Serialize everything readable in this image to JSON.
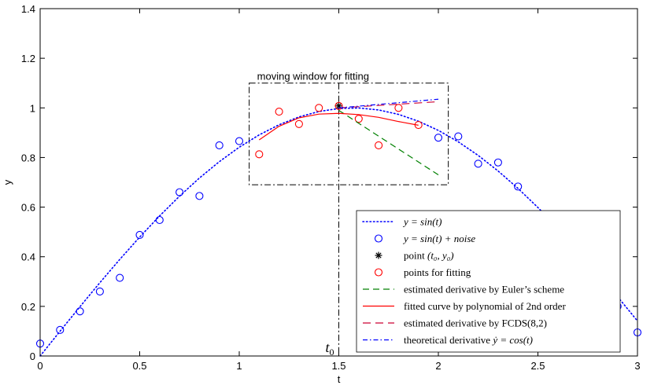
{
  "chart_data": {
    "type": "line",
    "xlabel": "t",
    "ylabel": "y",
    "xlim": [
      0,
      3
    ],
    "ylim": [
      0,
      1.4
    ],
    "xticks": [
      0,
      0.5,
      1,
      1.5,
      2,
      2.5,
      3
    ],
    "xtick_labels": [
      "0",
      "0.5",
      "1",
      "1.5",
      "2",
      "2.5",
      "3"
    ],
    "yticks": [
      0,
      0.2,
      0.4,
      0.6,
      0.8,
      1,
      1.2,
      1.4
    ],
    "ytick_labels": [
      "0",
      "0.2",
      "0.4",
      "0.6",
      "0.8",
      "1",
      "1.2",
      "1.4"
    ],
    "grid": false,
    "legend_position": "bottom-right",
    "annotations": {
      "window_label": "moving window for fitting",
      "window": {
        "t": [
          1.05,
          2.05
        ],
        "y": [
          0.69,
          1.1
        ]
      },
      "t0_label": "t",
      "t0_sub": "0",
      "t0_value": 1.5
    },
    "series": [
      {
        "name": "y = sin(t)",
        "style": "dotted",
        "color": "#0000ff",
        "x": [
          0,
          0.1,
          0.2,
          0.3,
          0.4,
          0.5,
          0.6,
          0.7,
          0.8,
          0.9,
          1.0,
          1.1,
          1.2,
          1.3,
          1.4,
          1.5,
          1.6,
          1.7,
          1.8,
          1.9,
          2.0,
          2.1,
          2.2,
          2.3,
          2.4,
          2.5,
          2.6,
          2.7,
          2.8,
          2.9,
          3.0
        ],
        "y": [
          0,
          0.0998,
          0.1987,
          0.2955,
          0.3894,
          0.4794,
          0.5646,
          0.6442,
          0.7174,
          0.7833,
          0.8415,
          0.8912,
          0.932,
          0.9636,
          0.9854,
          0.9975,
          0.9996,
          0.9917,
          0.9738,
          0.9463,
          0.9093,
          0.8632,
          0.8085,
          0.7457,
          0.6755,
          0.5985,
          0.5155,
          0.4274,
          0.335,
          0.2392,
          0.1411
        ]
      },
      {
        "name": "y = sin(t) + noise",
        "style": "circle-marker",
        "color": "#0000ff",
        "x": [
          0,
          0.1,
          0.2,
          0.3,
          0.4,
          0.5,
          0.6,
          0.7,
          0.8,
          0.9,
          1.0,
          2.0,
          2.1,
          2.2,
          2.3,
          2.4,
          2.9,
          3.0
        ],
        "y": [
          0.05,
          0.105,
          0.18,
          0.26,
          0.315,
          0.488,
          0.548,
          0.66,
          0.645,
          0.849,
          0.866,
          0.88,
          0.885,
          0.775,
          0.78,
          0.683,
          0.2,
          0.095
        ]
      },
      {
        "name": "point (t0, y0)",
        "style": "star-marker",
        "color": "#000000",
        "x": [
          1.5
        ],
        "y": [
          1.008
        ]
      },
      {
        "name": "points for fitting",
        "style": "circle-marker",
        "color": "#ff0000",
        "x": [
          1.1,
          1.2,
          1.3,
          1.4,
          1.5,
          1.6,
          1.7,
          1.8,
          1.9
        ],
        "y": [
          0.813,
          0.985,
          0.935,
          1.0,
          1.008,
          0.956,
          0.849,
          1.0,
          0.931
        ]
      },
      {
        "name": "estimated derivative by Euler's scheme",
        "style": "dashed",
        "color": "#008000",
        "x": [
          1.5,
          2.0
        ],
        "y": [
          0.99,
          0.73
        ]
      },
      {
        "name": "fitted curve by polynomial of 2nd order",
        "style": "solid",
        "color": "#ff0000",
        "x": [
          1.1,
          1.2,
          1.3,
          1.4,
          1.5,
          1.6,
          1.7,
          1.8,
          1.9
        ],
        "y": [
          0.871,
          0.926,
          0.96,
          0.975,
          0.978,
          0.973,
          0.962,
          0.945,
          0.93
        ]
      },
      {
        "name": "estimated derivative by FCDS(8,2)",
        "style": "dashdash",
        "color": "#cc0033",
        "x": [
          1.5,
          2.0
        ],
        "y": [
          1.0,
          1.025
        ]
      },
      {
        "name": "theoretical derivative ẏ = cos(t)",
        "style": "dashdot",
        "color": "#0000ff",
        "x": [
          1.5,
          2.0
        ],
        "y": [
          1.0,
          1.035
        ]
      }
    ]
  },
  "legend": {
    "items": [
      {
        "math": "y = sin(t)"
      },
      {
        "math": "y = sin(t) + noise"
      },
      {
        "text": "point ",
        "math": "(t₀, y₀)"
      },
      {
        "text": "points for fitting"
      },
      {
        "text": "estimated derivative by Euler’s scheme"
      },
      {
        "text": "fitted curve by polynomial of 2nd order"
      },
      {
        "text": "estimated derivative by FCDS(8,2)"
      },
      {
        "text": "theoretical derivative ",
        "math": "ẏ = cos(t)"
      }
    ]
  }
}
